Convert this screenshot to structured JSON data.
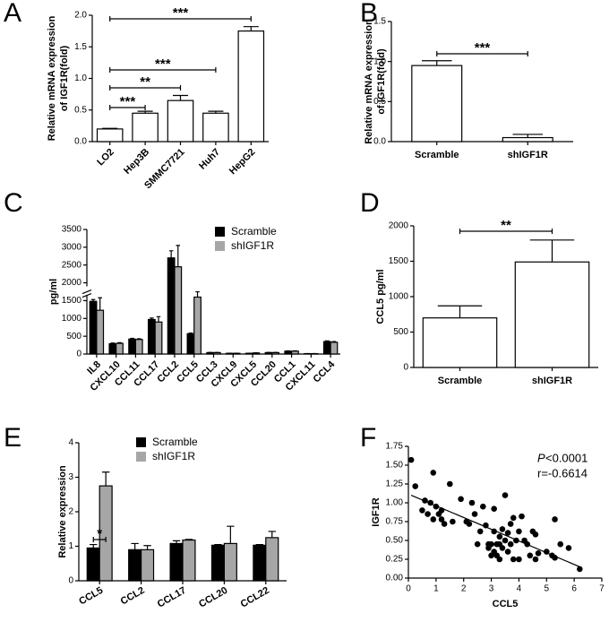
{
  "chart_data": [
    {
      "type": "bar",
      "panel": "A",
      "y_label": [
        "Relative mRNA expression",
        "of IGF1R(fold)"
      ],
      "categories": [
        "LO2",
        "Hep3B",
        "SMMC7721",
        "Huh7",
        "HepG2"
      ],
      "values": [
        0.2,
        0.45,
        0.65,
        0.45,
        1.75
      ],
      "errors": [
        0.01,
        0.03,
        0.08,
        0.03,
        0.07
      ],
      "color": "#ffffff",
      "ylim": [
        0,
        2
      ],
      "yticks": [
        {
          "value": 0,
          "label": "0.0"
        },
        0.5,
        {
          "value": 1,
          "label": "1.0"
        },
        1.5,
        {
          "value": 2,
          "label": "2.0"
        }
      ],
      "annotations": [
        "***",
        "***",
        "**",
        "***"
      ]
    },
    {
      "type": "bar",
      "panel": "B",
      "y_label": [
        "Relative mRNA expression",
        "of IGF1R(fold)"
      ],
      "categories": [
        "Scramble",
        "shIGF1R"
      ],
      "values": [
        0.95,
        0.05
      ],
      "errors": [
        0.06,
        0.04
      ],
      "color": "#ffffff",
      "ylim": [
        0,
        1.5
      ],
      "yticks": [
        {
          "value": 0,
          "label": "0.0"
        },
        0.5,
        {
          "value": 1,
          "label": "1.0"
        },
        1.5
      ],
      "annotations": [
        "***"
      ]
    },
    {
      "type": "bar",
      "panel": "C",
      "y_label": [
        "pg/ml"
      ],
      "categories": [
        "IL8",
        "CXCL10",
        "CCL11",
        "CCL17",
        "CCL2",
        "CCL5",
        "CCL3",
        "CXCL9",
        "CXCL5",
        "CCL20",
        "CCL1",
        "CXCL11",
        "CCL4"
      ],
      "series": [
        {
          "name": "Scramble",
          "color": "#000000",
          "values": [
            1480,
            290,
            420,
            970,
            2700,
            570,
            40,
            20,
            20,
            40,
            80,
            10,
            350
          ],
          "errors": [
            50,
            20,
            20,
            40,
            200,
            20,
            5,
            2,
            2,
            5,
            10,
            2,
            20
          ]
        },
        {
          "name": "shIGF1R",
          "color": "#a6a6a6",
          "values": [
            1230,
            300,
            410,
            900,
            2450,
            1600,
            40,
            20,
            30,
            40,
            80,
            10,
            330
          ],
          "errors": [
            350,
            20,
            20,
            150,
            600,
            150,
            5,
            2,
            2,
            5,
            10,
            2,
            20
          ]
        }
      ],
      "ylim": [
        0,
        3500
      ],
      "ybreak": [
        1650,
        1900
      ],
      "yticks": [
        0,
        500,
        1000,
        1500,
        2000,
        2500,
        3000,
        3500
      ]
    },
    {
      "type": "bar",
      "panel": "D",
      "y_label": [
        "CCL5 pg/ml"
      ],
      "categories": [
        "Scramble",
        "shIGF1R"
      ],
      "values": [
        700,
        1490
      ],
      "errors": [
        170,
        310
      ],
      "color": "#ffffff",
      "ylim": [
        0,
        2000
      ],
      "yticks": [
        0,
        500,
        1000,
        1500,
        2000
      ],
      "annotations": [
        "**"
      ]
    },
    {
      "type": "bar",
      "panel": "E",
      "y_label": [
        "Relative  expression"
      ],
      "categories": [
        "CCL5",
        "CCL2",
        "CCL17",
        "CCL20",
        "CCL22"
      ],
      "series": [
        {
          "name": "Scramble",
          "color": "#000000",
          "values": [
            0.95,
            0.9,
            1.08,
            1.03,
            1.03
          ],
          "errors": [
            0.1,
            0.18,
            0.08,
            0.02,
            0.02
          ]
        },
        {
          "name": "shIGF1R",
          "color": "#a6a6a6",
          "values": [
            2.75,
            0.9,
            1.18,
            1.08,
            1.25
          ],
          "errors": [
            0.4,
            0.12,
            0.02,
            0.5,
            0.18
          ]
        }
      ],
      "ylim": [
        0,
        4
      ],
      "yticks": [
        0,
        1,
        2,
        3,
        4
      ],
      "annotations": [
        "*"
      ]
    },
    {
      "type": "scatter",
      "panel": "F",
      "x_label": "CCL5",
      "y_label": "IGF1R",
      "x": [
        0.1,
        0.25,
        0.5,
        0.6,
        0.7,
        0.8,
        0.9,
        0.9,
        1.0,
        1.1,
        1.2,
        1.2,
        1.3,
        1.5,
        1.6,
        1.9,
        2.1,
        2.2,
        2.3,
        2.4,
        2.5,
        2.6,
        2.7,
        2.8,
        2.9,
        2.9,
        3.0,
        3.0,
        3.1,
        3.1,
        3.1,
        3.2,
        3.2,
        3.3,
        3.3,
        3.3,
        3.4,
        3.4,
        3.5,
        3.5,
        3.6,
        3.6,
        3.7,
        3.7,
        3.8,
        3.8,
        3.9,
        4.0,
        4.0,
        4.1,
        4.2,
        4.3,
        4.4,
        4.5,
        4.6,
        4.6,
        4.7,
        5.0,
        5.2,
        5.3,
        5.3,
        5.5,
        5.8,
        6.2
      ],
      "y": [
        1.57,
        1.22,
        0.9,
        1.03,
        0.85,
        1.0,
        1.4,
        0.78,
        0.95,
        0.85,
        0.78,
        0.9,
        0.72,
        1.25,
        0.75,
        1.05,
        0.75,
        0.72,
        1.0,
        0.85,
        0.45,
        0.62,
        0.95,
        0.7,
        0.4,
        0.45,
        0.3,
        0.45,
        0.62,
        0.92,
        0.35,
        0.45,
        0.3,
        0.55,
        0.25,
        0.45,
        0.65,
        0.4,
        1.1,
        0.5,
        0.6,
        0.35,
        0.72,
        0.45,
        0.25,
        0.8,
        0.5,
        0.62,
        0.25,
        0.82,
        0.5,
        0.45,
        0.3,
        0.62,
        0.25,
        0.58,
        0.33,
        0.35,
        0.3,
        0.78,
        0.27,
        0.45,
        0.4,
        0.12
      ],
      "color": "#000000",
      "fit": {
        "x": [
          0.1,
          6.2
        ],
        "y": [
          1.1,
          0.15
        ]
      },
      "xlim": [
        0,
        7
      ],
      "xticks": [
        0,
        1,
        2,
        3,
        4,
        5,
        6,
        7
      ],
      "ylim": [
        0,
        1.75
      ],
      "yticks": [
        {
          "value": 0,
          "label": "0.00"
        },
        0.25,
        {
          "value": 0.5,
          "label": "0.50"
        },
        0.75,
        {
          "value": 1,
          "label": "1.00"
        },
        1.25,
        {
          "value": 1.5,
          "label": "1.50"
        },
        1.75
      ],
      "annotations": [
        "P",
        "<0.0001",
        "r=-0.6614"
      ]
    }
  ]
}
